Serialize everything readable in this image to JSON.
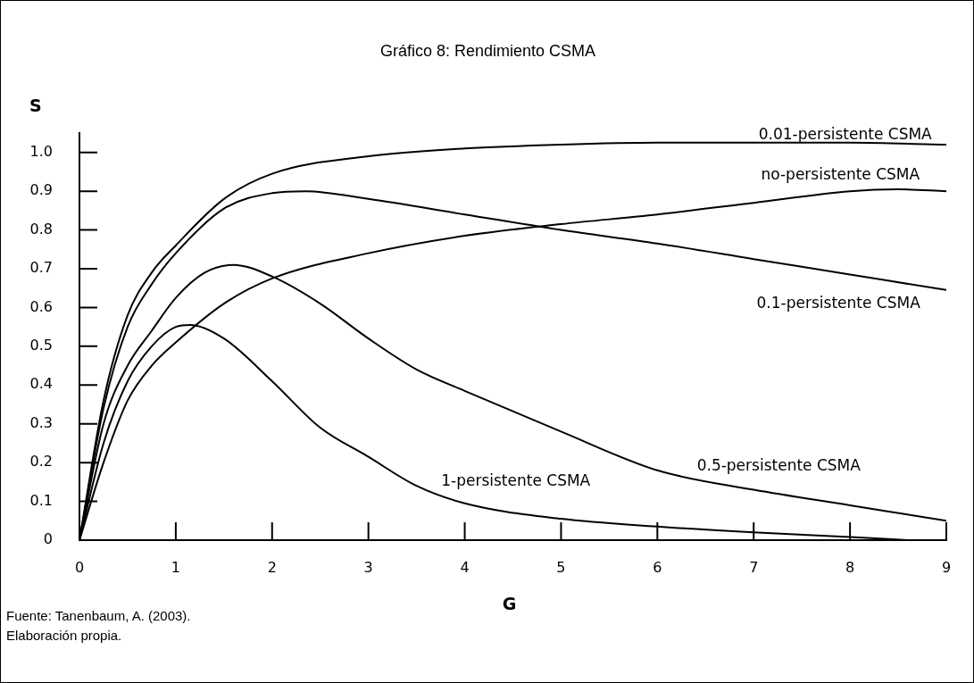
{
  "chart_data": {
    "type": "line",
    "title": "Gráfico 8: Rendimiento CSMA",
    "xlabel": "G",
    "ylabel": "S",
    "annotations": [
      "Fuente: Tanenbaum, A. (2003).",
      "Elaboración propia."
    ],
    "xlim": [
      0,
      9
    ],
    "xticks": [
      0,
      1,
      2,
      3,
      4,
      5,
      6,
      7,
      8,
      9
    ],
    "ylim": [
      0,
      1.05
    ],
    "yticks": [
      0,
      0.1,
      0.2,
      0.3,
      0.4,
      0.5,
      0.6,
      0.7,
      0.8,
      0.9,
      {
        "value": 1,
        "label": "1.0"
      }
    ],
    "grid": false,
    "legend": false,
    "marker": "none",
    "line_style": "solid",
    "series": [
      {
        "name": "0.01-persistente CSMA",
        "color": "#000000",
        "x": [
          0,
          0.25,
          0.5,
          0.75,
          1,
          1.5,
          2,
          3,
          4,
          5,
          6,
          7,
          8,
          9
        ],
        "values": [
          0,
          0.36,
          0.58,
          0.69,
          0.76,
          0.88,
          0.945,
          0.99,
          1.01,
          1.02,
          1.025,
          1.025,
          1.025,
          1.02
        ]
      },
      {
        "name": "no-persistente CSMA",
        "color": "#000000",
        "x": [
          0,
          0.25,
          0.5,
          0.75,
          1,
          1.5,
          2,
          3,
          4,
          5,
          6,
          7,
          8,
          8.5,
          9
        ],
        "values": [
          0,
          0.2,
          0.36,
          0.45,
          0.51,
          0.61,
          0.675,
          0.74,
          0.785,
          0.815,
          0.84,
          0.87,
          0.9,
          0.905,
          0.9
        ]
      },
      {
        "name": "0.1-persistente CSMA",
        "color": "#000000",
        "x": [
          0,
          0.25,
          0.5,
          0.75,
          1,
          1.5,
          2,
          2.35,
          3,
          4,
          5,
          6,
          7,
          8,
          9
        ],
        "values": [
          0,
          0.34,
          0.55,
          0.66,
          0.74,
          0.855,
          0.895,
          0.9,
          0.88,
          0.84,
          0.8,
          0.765,
          0.725,
          0.685,
          0.645
        ]
      },
      {
        "name": "0.5-persistente CSMA",
        "color": "#000000",
        "x": [
          0,
          0.25,
          0.5,
          0.75,
          1,
          1.3,
          1.6,
          2,
          2.5,
          3,
          3.5,
          4,
          5,
          6,
          7,
          8,
          9
        ],
        "values": [
          0,
          0.3,
          0.45,
          0.54,
          0.625,
          0.69,
          0.71,
          0.68,
          0.61,
          0.52,
          0.44,
          0.385,
          0.28,
          0.18,
          0.13,
          0.09,
          0.05
        ]
      },
      {
        "name": "1-persistente CSMA",
        "color": "#000000",
        "x": [
          0,
          0.25,
          0.5,
          0.75,
          1,
          1.15,
          1.5,
          2,
          2.5,
          3,
          3.5,
          4,
          5,
          6,
          7,
          8,
          8.6
        ],
        "values": [
          0,
          0.25,
          0.41,
          0.5,
          0.55,
          0.555,
          0.52,
          0.41,
          0.29,
          0.215,
          0.14,
          0.095,
          0.055,
          0.035,
          0.02,
          0.008,
          0
        ]
      }
    ]
  }
}
